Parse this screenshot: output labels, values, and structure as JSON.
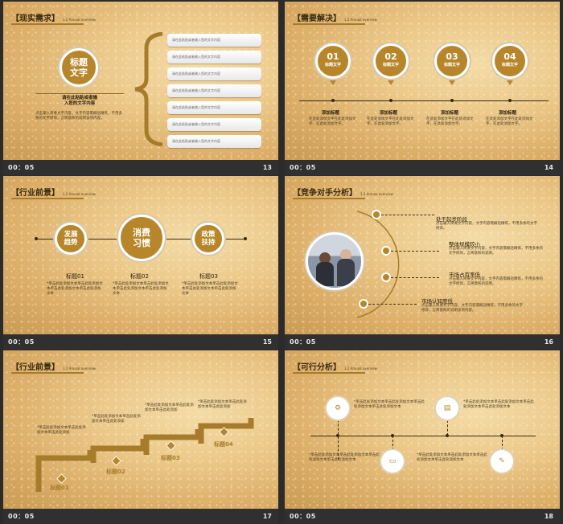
{
  "footer_time": "00：05",
  "slides": [
    {
      "num": "13",
      "title": "【现实需求】",
      "subtitle": "1.2 Annual overview",
      "circle": "标题\n文字",
      "heading": "请在此粘贴或者输\n入您的文字内容",
      "body": "点击输入简要文字内容，文字内容需概括精炼，不用多余的文字修饰，言简意赅的说明该项内容。",
      "pills": [
        "请在此粘贴或者输入您的文字内容",
        "请在此粘贴或者输入您的文字内容",
        "请在此粘贴或者输入您的文字内容",
        "请在此粘贴或者输入您的文字内容",
        "请在此粘贴或者输入您的文字内容",
        "请在此粘贴或者输入您的文字内容",
        "请在此粘贴或者输入您的文字内容"
      ]
    },
    {
      "num": "14",
      "title": "【需要解决】",
      "subtitle": "1.2 Annual overview",
      "items": [
        {
          "n": "01",
          "l": "标题文字"
        },
        {
          "n": "02",
          "l": "标题文字"
        },
        {
          "n": "03",
          "l": "标题文字"
        },
        {
          "n": "04",
          "l": "标题文字"
        }
      ],
      "heads": [
        "添加标题",
        "添加标题",
        "添加标题",
        "添加标题"
      ],
      "texts": [
        "在此处添加文字在此处添加文字，在此处添加文字。",
        "在此处添加文字在此处添加文字，在此处添加文字。",
        "在此处添加文字在此处添加文字，在此处添加文字。",
        "在此处添加文字在此处添加文字，在此处添加文字。"
      ]
    },
    {
      "num": "15",
      "title": "【行业前景】",
      "subtitle": "1.2 Annual overview",
      "circles": [
        "发展\n趋势",
        "消费\n习惯",
        "政策\n扶持"
      ],
      "labels": [
        "标题01",
        "标题02",
        "标题03"
      ],
      "texts": [
        "*单击此处添加文本单击此处添加文本单击此处添加文本单击此处添加文本",
        "*单击此处添加文本单击此处添加文本单击此处添加文本单击此处添加文本",
        "*单击此处添加文本单击此处添加文本单击此处添加文本单击此处添加文本"
      ]
    },
    {
      "num": "16",
      "title": "【竞争对手分析】",
      "subtitle": "1.2 Annual overview",
      "items": [
        {
          "h": "处于起步阶段",
          "t": "点击输入简要文字内容，文字内容需概括精炼，不用多余的文字修饰。"
        },
        {
          "h": "整体规模较小",
          "t": "点击输入简要文字内容，文字内容需概括精炼，不用多余的文字修饰，言简意赅的说明。"
        },
        {
          "h": "市场占有率低",
          "t": "点击输入简要文字内容，文字内容需概括精炼，不用多余的文字修饰，言简意赅的说明。"
        },
        {
          "h": "市场认知度低",
          "t": "点击输入简要文字内容，文字内容需概括精炼，不用多余的文字修饰，言简意赅的说明该项内容。"
        }
      ]
    },
    {
      "num": "17",
      "title": "【行业前景】",
      "subtitle": "1.2 Annual overview",
      "labels": [
        "标题01",
        "标题02",
        "标题03",
        "标题04"
      ],
      "texts": [
        "*单击此处添加文本单击此处添加文本单击此处添加",
        "*单击此处添加文本单击此处添加文本单击此处添加",
        "*单击此处添加文本单击此处添加文本单击此处添加",
        "*单击此处添加文本单击此处添加文本单击此处添加"
      ]
    },
    {
      "num": "18",
      "title": "【可行分析】",
      "subtitle": "1.2 Annual overview",
      "texts": [
        "*单击此处添加文本单击此处添加文本单击此处添加文本单击此处添加文本",
        "*单击此处添加文本单击此处添加文本单击此处添加文本单击此处添加文本",
        "*单击此处添加文本单击此处添加文本单击此处添加文本单击此处添加文本",
        "*单击此处添加文本单击此处添加文本单击此处添加文本单击此处添加文本"
      ]
    }
  ]
}
